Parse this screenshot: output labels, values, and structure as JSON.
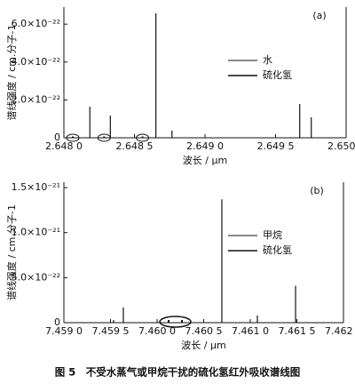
{
  "chart_data": [
    {
      "type": "spectrum",
      "panel_label": "(a)",
      "xlabel": "波长 / μm",
      "ylabel": "谱线强度 / cm.分子-1",
      "xlim": [
        2.648,
        2.65
      ],
      "xticks": [
        {
          "value": 2.648,
          "label": "2.648 0"
        },
        {
          "value": 2.6485,
          "label": "2.648 5"
        },
        {
          "value": 2.649,
          "label": "2.649 0"
        },
        {
          "value": 2.6495,
          "label": "2.649 5"
        },
        {
          "value": 2.65,
          "label": "2.650 0"
        }
      ],
      "ylim": [
        0,
        6.9e-22
      ],
      "yticks": [
        0,
        {
          "value": 2e-22,
          "label": "2.0×10⁻²²"
        },
        {
          "value": 4e-22,
          "label": "4.0×10⁻²²"
        },
        {
          "value": 6e-22,
          "label": "6.0×10⁻²²"
        }
      ],
      "series": [
        {
          "name": "水",
          "color": "#111111",
          "x": [
            2.648184,
            2.648329,
            2.648652,
            2.648766,
            2.649671,
            2.649753
          ],
          "values": [
            1.64e-22,
            1.17e-22,
            6.57e-22,
            3.8e-23,
            1.78e-22,
            1.08e-22
          ]
        },
        {
          "name": "硫化氢",
          "color": "#111111",
          "x": [
            2.648063,
            2.648285,
            2.648557
          ],
          "values": [
            5e-24,
            5e-24,
            5e-24
          ]
        }
      ]
    },
    {
      "type": "spectrum",
      "panel_label": "(b)",
      "xlabel": "波长 / μm",
      "ylabel": "谱线强度 / cm.分子-1",
      "xlim": [
        7.459,
        7.462
      ],
      "xticks": [
        {
          "value": 7.459,
          "label": "7.459 0"
        },
        {
          "value": 7.4595,
          "label": "7.459 5"
        },
        {
          "value": 7.46,
          "label": "7.460 0"
        },
        {
          "value": 7.4605,
          "label": "7.460 5"
        },
        {
          "value": 7.461,
          "label": "7.461 0"
        },
        {
          "value": 7.4615,
          "label": "7.461 5"
        },
        {
          "value": 7.462,
          "label": "7.462 0"
        }
      ],
      "ylim": [
        0,
        1.56e-21
      ],
      "yticks": [
        0,
        {
          "value": 5e-22,
          "label": "5.0×10⁻²²"
        },
        {
          "value": 1e-21,
          "label": "1.0×10⁻²¹"
        },
        {
          "value": 1.5e-21,
          "label": "1.5×10⁻²¹"
        }
      ],
      "series": [
        {
          "name": "甲烷",
          "color": "#111111",
          "x": [
            7.459533,
            7.459638,
            7.460695,
            7.461076,
            7.461486
          ],
          "values": [
            3e-23,
            1.7e-22,
            1.37e-21,
            8e-23,
            4.1e-22
          ]
        },
        {
          "name": "硫化氢",
          "color": "#111111",
          "x": [
            7.460124,
            7.460267
          ],
          "values": [
            3e-23,
            3e-23
          ]
        }
      ]
    }
  ],
  "caption": "图 5　不受水蒸气或甲烷干扰的硫化氢红外吸收谱线图"
}
